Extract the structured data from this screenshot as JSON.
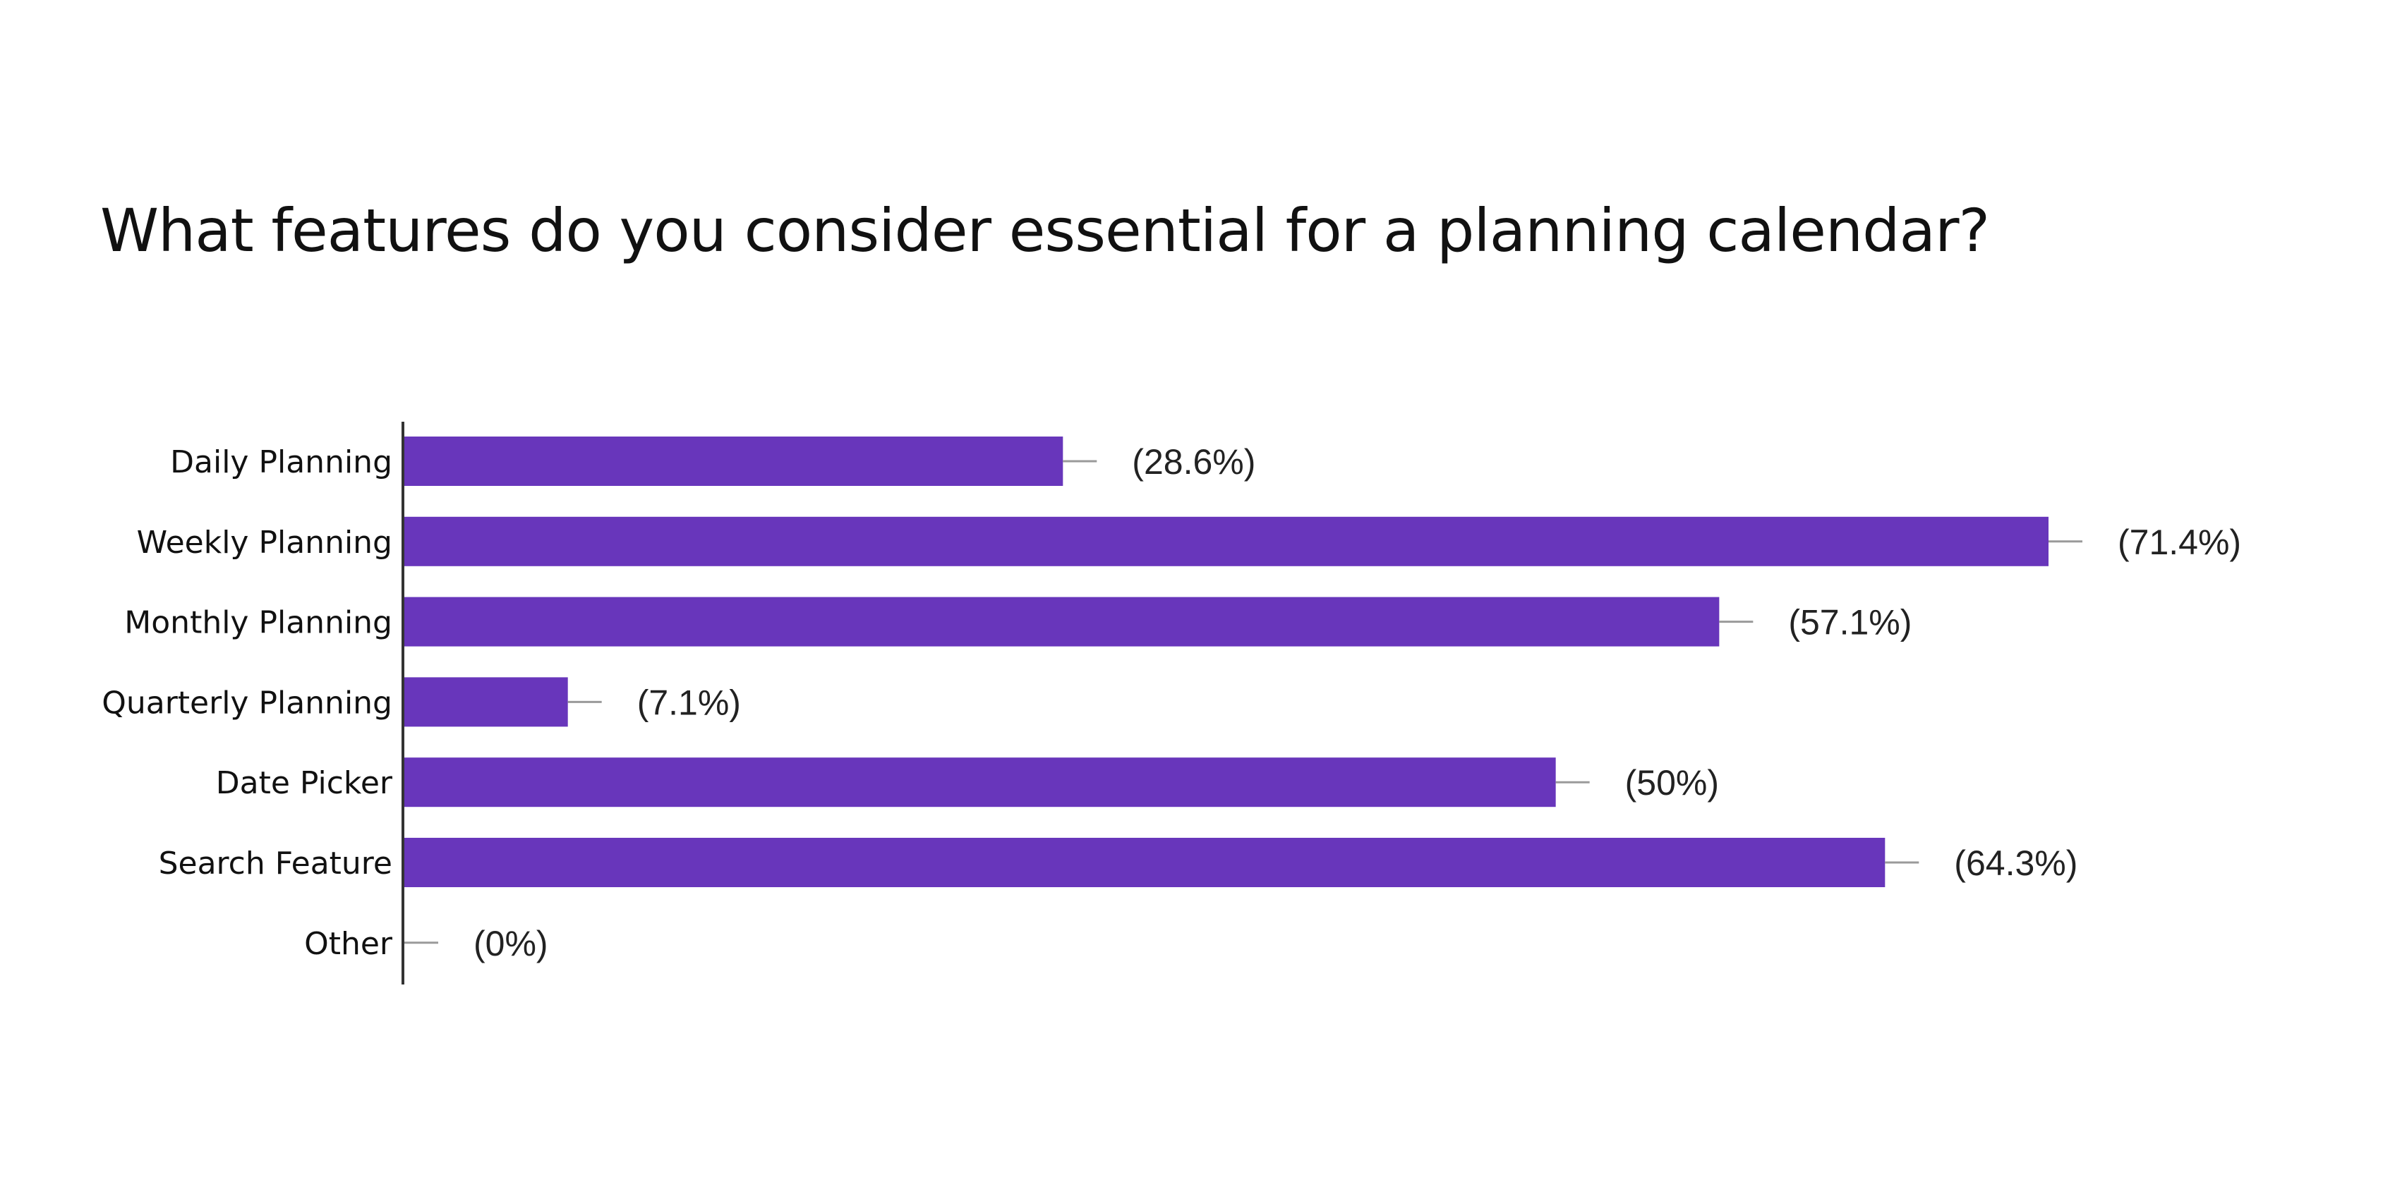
{
  "chart_data": {
    "type": "bar",
    "orientation": "horizontal",
    "title": "What features do you consider essential for a planning calendar?",
    "categories": [
      "Daily Planning",
      "Weekly Planning",
      "Monthly Planning",
      "Quarterly Planning",
      "Date Picker",
      "Search Feature",
      "Other"
    ],
    "values": [
      28.6,
      71.4,
      57.1,
      7.1,
      50,
      64.3,
      0
    ],
    "value_labels": [
      "(28.6%)",
      "(71.4%)",
      "(57.1%)",
      "(7.1%)",
      "(50%)",
      "(64.3%)",
      "(0%)"
    ],
    "xlabel": "",
    "ylabel": "",
    "xlim": [
      0,
      71.4
    ],
    "grid": false,
    "legend": "none",
    "bar_color": "#6836bb"
  }
}
